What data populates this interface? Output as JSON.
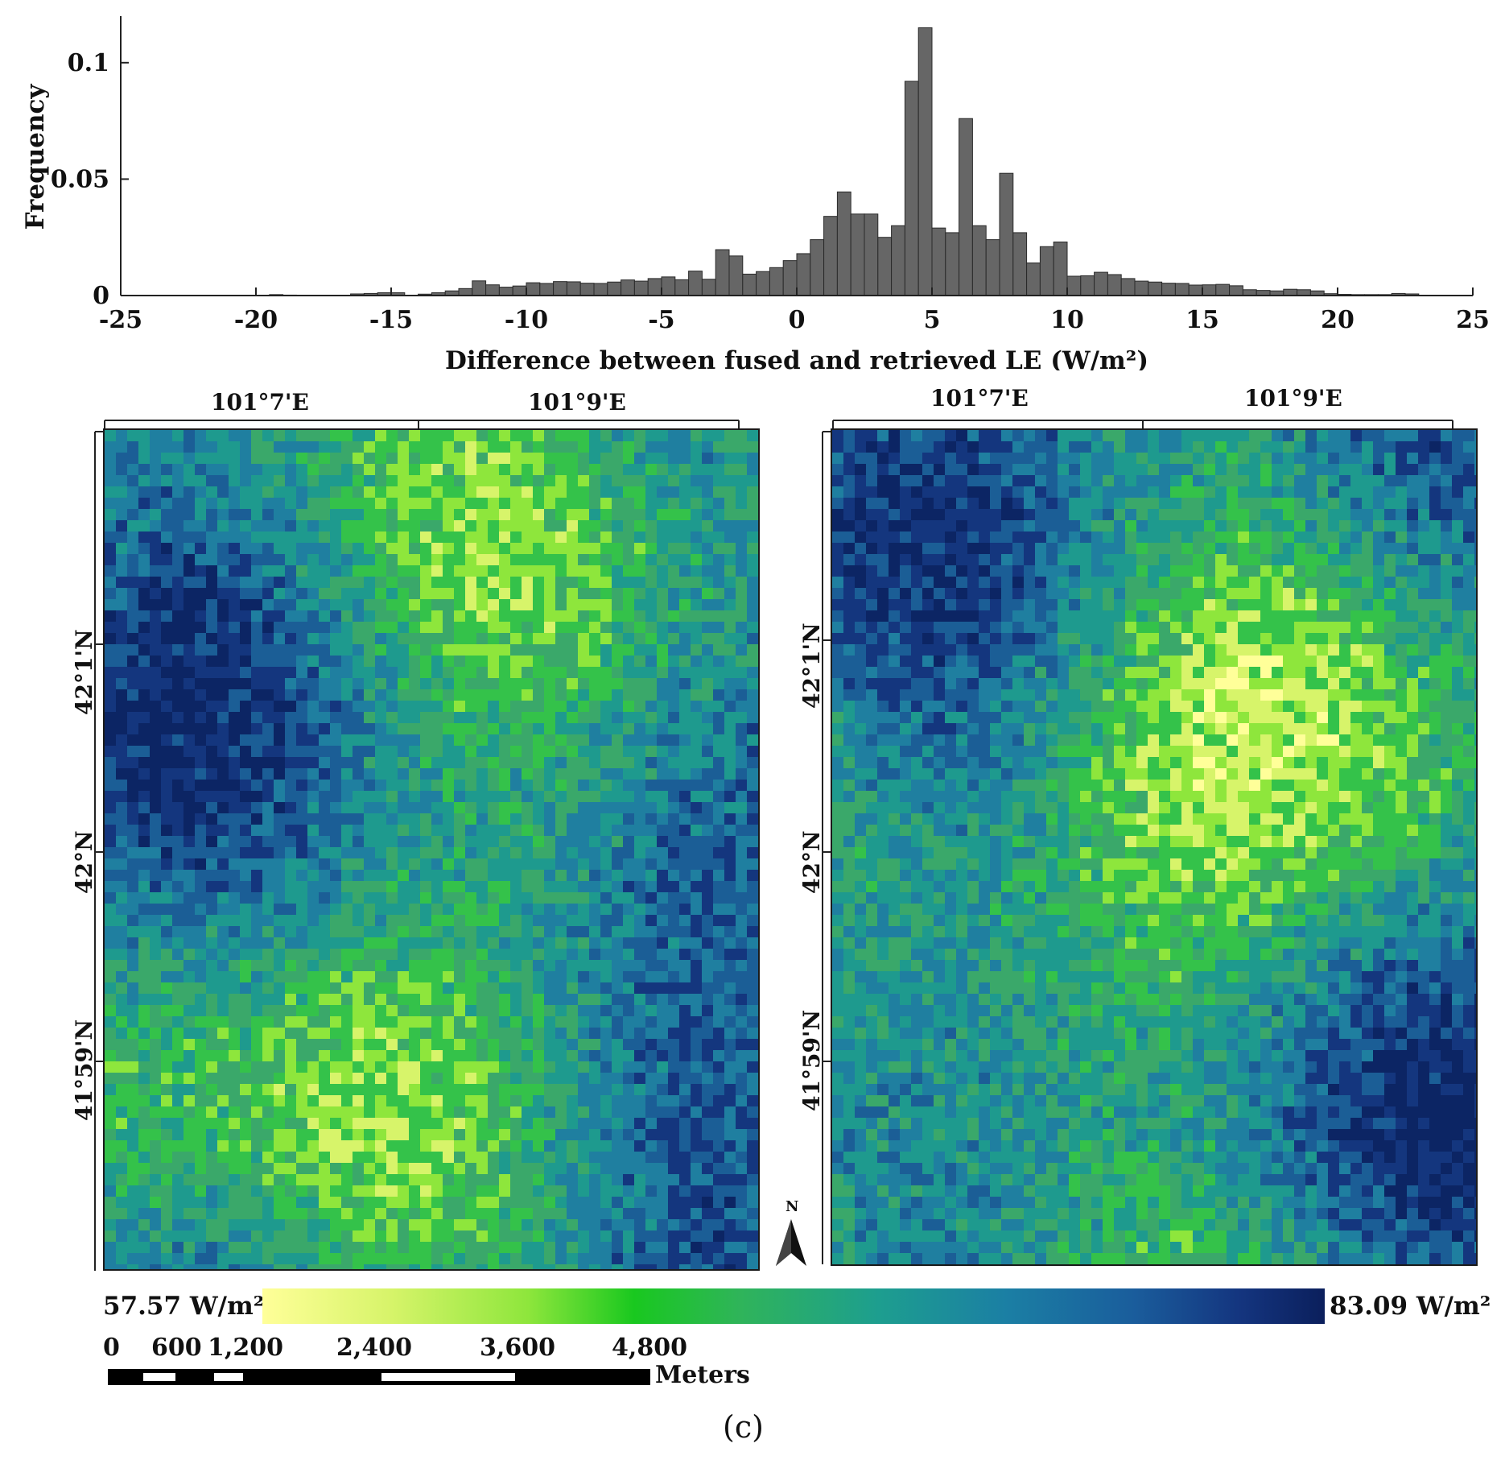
{
  "chart_data": {
    "type": "bar",
    "xlabel": "Difference between fused and retrieved LE (W/m²)",
    "ylabel": "Frequency",
    "xlim": [
      -25,
      25
    ],
    "ylim": [
      0,
      0.12
    ],
    "x_ticks": [
      "-25",
      "-20",
      "-15",
      "-10",
      "-5",
      "0",
      "5",
      "10",
      "15",
      "20",
      "25"
    ],
    "y_ticks": [
      "0",
      "0.05",
      "0.1"
    ],
    "bin_width": 0.5,
    "bin_start": -19.5,
    "values": [
      0.0004,
      0.0002,
      0,
      0,
      0,
      0,
      0.0007,
      0.0009,
      0.0012,
      0.0012,
      0,
      0.0006,
      0.0012,
      0.002,
      0.003,
      0.0063,
      0.0046,
      0.0036,
      0.0041,
      0.0055,
      0.0052,
      0.006,
      0.0059,
      0.0053,
      0.0052,
      0.0058,
      0.0067,
      0.0062,
      0.0073,
      0.008,
      0.0068,
      0.0105,
      0.007,
      0.0197,
      0.017,
      0.0092,
      0.0103,
      0.012,
      0.015,
      0.018,
      0.024,
      0.034,
      0.0445,
      0.035,
      0.035,
      0.025,
      0.03,
      0.092,
      0.115,
      0.029,
      0.027,
      0.076,
      0.03,
      0.024,
      0.0525,
      0.027,
      0.014,
      0.021,
      0.023,
      0.0083,
      0.0085,
      0.01,
      0.009,
      0.0073,
      0.0062,
      0.0058,
      0.0053,
      0.0052,
      0.0045,
      0.0046,
      0.0048,
      0.0042,
      0.0025,
      0.0022,
      0.002,
      0.0027,
      0.0025,
      0.002,
      0.0008,
      0.0005,
      0.0004,
      0.0004,
      0.0004,
      0.0009,
      0.0007,
      0.0001
    ]
  },
  "maps": {
    "left": {
      "lon_labels": [
        "101°7'E",
        "101°9'E"
      ],
      "lat_labels": [
        "42°1'N",
        "42°N",
        "41°59'N"
      ]
    },
    "right": {
      "lon_labels": [
        "101°7'E",
        "101°9'E"
      ],
      "lat_labels": [
        "42°1'N",
        "42°N",
        "41°59'N"
      ]
    },
    "north_label": "N"
  },
  "legend": {
    "min_label": "57.57 W/m²",
    "max_label": "83.09 W/m²",
    "colors": [
      "#ffff99",
      "#8ee63c",
      "#19c81f",
      "#1d9e8f",
      "#1a5d9c",
      "#0b1f5c"
    ]
  },
  "scale_bar": {
    "labels": [
      "0",
      "600",
      "1,200",
      "2,400",
      "3,600",
      "4,800"
    ],
    "unit": "Meters"
  },
  "panel_label": "(c)"
}
